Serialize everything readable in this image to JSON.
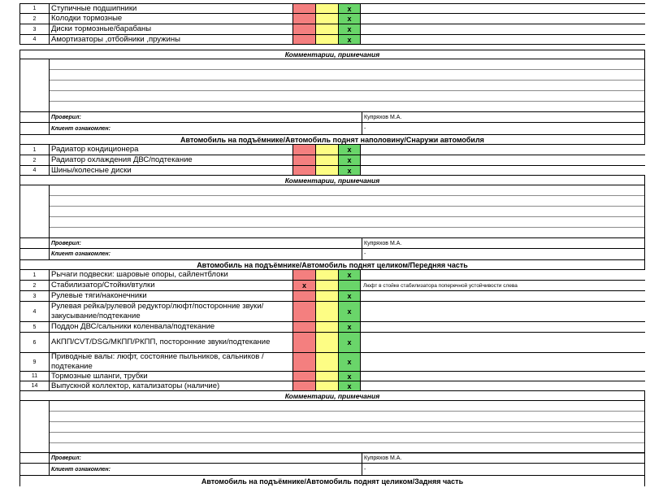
{
  "check_mark": "x",
  "sections": [
    {
      "title": "",
      "items": [
        {
          "num": "1",
          "name": "Ступичные подшипники",
          "mark": "green",
          "note": ""
        },
        {
          "num": "2",
          "name": "Колодки тормозные",
          "mark": "green",
          "note": ""
        },
        {
          "num": "3",
          "name": "Диски тормозные/барабаны",
          "mark": "green",
          "note": ""
        },
        {
          "num": "4",
          "name": "Амортизаторы ,отбойники ,пружины",
          "mark": "green",
          "note": ""
        }
      ],
      "comments_label": "Комментарии, примечания",
      "checked_label": "Проверил:",
      "checked_value": "Купряхов М.А.",
      "client_label": "Клиент ознакомлен:",
      "client_value": "-"
    },
    {
      "title": "Автомобиль на подъёмнике/Автомобиль поднят наполовину/Снаружи автомобиля",
      "items": [
        {
          "num": "1",
          "name": "Радиатор кондиционера",
          "mark": "green",
          "note": ""
        },
        {
          "num": "2",
          "name": "Радиатор охлаждения ДВС/подтекание",
          "mark": "green",
          "note": ""
        },
        {
          "num": "4",
          "name": "Шины/колесные диски",
          "mark": "green",
          "note": ""
        }
      ],
      "comments_label": "Комментарии, примечания",
      "checked_label": "Проверил:",
      "checked_value": "Купряхов М.А.",
      "client_label": "Клиент ознакомлен:",
      "client_value": "-"
    },
    {
      "title": "Автомобиль на подъёмнике/Автомобиль поднят целиком/Передняя часть",
      "items": [
        {
          "num": "1",
          "name": "Рычаги подвески: шаровые опоры, сайлентблоки",
          "mark": "green",
          "note": ""
        },
        {
          "num": "2",
          "name": "Стабилизатор/Стойки/втулки",
          "mark": "red",
          "note": "Люфт в стойке стабилизатора поперечной устойчивости слева"
        },
        {
          "num": "3",
          "name": "Рулевые тяги/наконечники",
          "mark": "green",
          "note": ""
        },
        {
          "num": "4",
          "name": "Рулевая рейка/рулевой редуктор/люфт/посторонние звуки/закусывание/подтекание",
          "mark": "green",
          "note": ""
        },
        {
          "num": "5",
          "name": "Поддон ДВС/сальники коленвала/подтекание",
          "mark": "green",
          "note": ""
        },
        {
          "num": "6",
          "name": "АКПП/CVT/DSG/МКПП/РКПП, посторонние звуки/подтекание",
          "mark": "green",
          "note": ""
        },
        {
          "num": "9",
          "name": "Приводные валы: люфт, состояние пыльников, сальников / подтекание",
          "mark": "green",
          "note": ""
        },
        {
          "num": "11",
          "name": "Тормозные шланги, трубки",
          "mark": "green",
          "note": ""
        },
        {
          "num": "14",
          "name": "Выпускной коллектор, катализаторы (наличие)",
          "mark": "green",
          "note": ""
        }
      ],
      "comments_label": "Комментарии, примечания",
      "checked_label": "Проверил:",
      "checked_value": "Купряхов М.А.",
      "client_label": "Клиент ознакомлен:",
      "client_value": "-"
    },
    {
      "title": "Автомобиль на подъёмнике/Автомобиль поднят целиком/Задняя часть",
      "items": []
    }
  ]
}
